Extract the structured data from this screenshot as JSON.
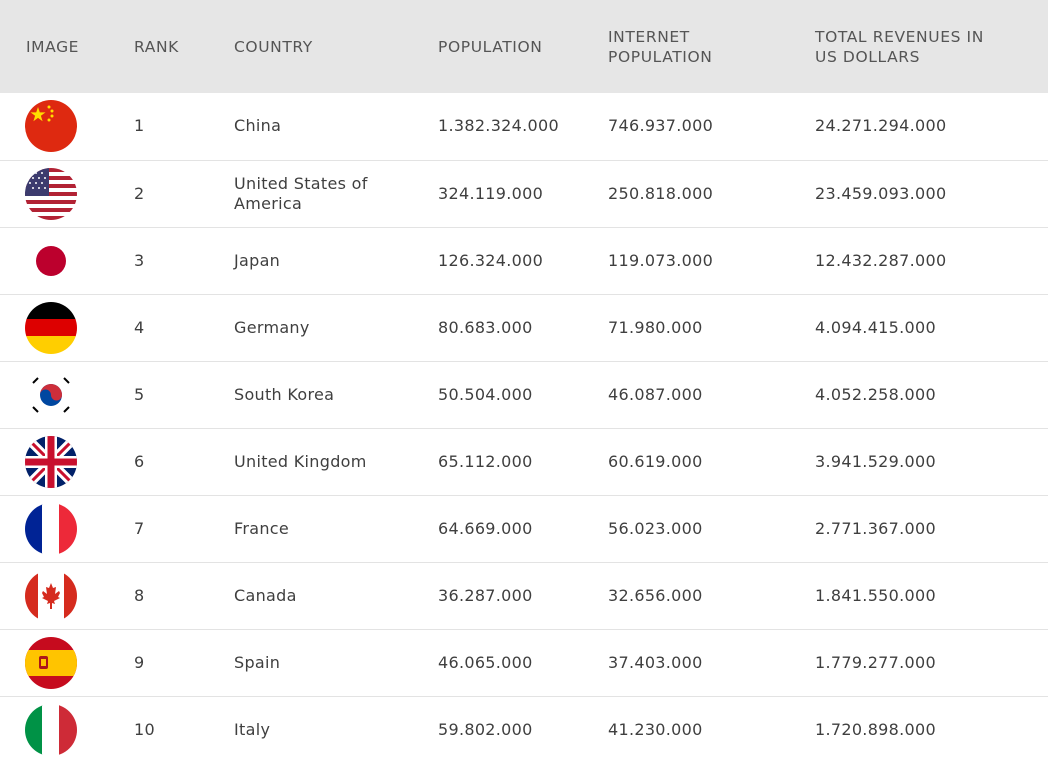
{
  "table": {
    "headers": [
      "IMAGE",
      "RANK",
      "COUNTRY",
      "POPULATION",
      "INTERNET POPULATION",
      "TOTAL REVENUES IN US DOLLARS"
    ],
    "rows": [
      {
        "flag": "china-flag-icon",
        "rank": "1",
        "country": "China",
        "population": "1.382.324.000",
        "internet_population": "746.937.000",
        "revenues": "24.271.294.000"
      },
      {
        "flag": "usa-flag-icon",
        "rank": "2",
        "country": "United States of America",
        "population": "324.119.000",
        "internet_population": "250.818.000",
        "revenues": "23.459.093.000"
      },
      {
        "flag": "japan-flag-icon",
        "rank": "3",
        "country": "Japan",
        "population": "126.324.000",
        "internet_population": "119.073.000",
        "revenues": "12.432.287.000"
      },
      {
        "flag": "germany-flag-icon",
        "rank": "4",
        "country": "Germany",
        "population": "80.683.000",
        "internet_population": "71.980.000",
        "revenues": "4.094.415.000"
      },
      {
        "flag": "south-korea-flag-icon",
        "rank": "5",
        "country": "South Korea",
        "population": "50.504.000",
        "internet_population": "46.087.000",
        "revenues": "4.052.258.000"
      },
      {
        "flag": "uk-flag-icon",
        "rank": "6",
        "country": "United Kingdom",
        "population": "65.112.000",
        "internet_population": "60.619.000",
        "revenues": "3.941.529.000"
      },
      {
        "flag": "france-flag-icon",
        "rank": "7",
        "country": "France",
        "population": "64.669.000",
        "internet_population": "56.023.000",
        "revenues": "2.771.367.000"
      },
      {
        "flag": "canada-flag-icon",
        "rank": "8",
        "country": "Canada",
        "population": "36.287.000",
        "internet_population": "32.656.000",
        "revenues": "1.841.550.000"
      },
      {
        "flag": "spain-flag-icon",
        "rank": "9",
        "country": "Spain",
        "population": "46.065.000",
        "internet_population": "37.403.000",
        "revenues": "1.779.277.000"
      },
      {
        "flag": "italy-flag-icon",
        "rank": "10",
        "country": "Italy",
        "population": "59.802.000",
        "internet_population": "41.230.000",
        "revenues": "1.720.898.000"
      }
    ]
  },
  "colors": {
    "header_bg": "#e6e6e6",
    "row_divider": "#e3e3e3",
    "text": "#3f3f3f"
  }
}
